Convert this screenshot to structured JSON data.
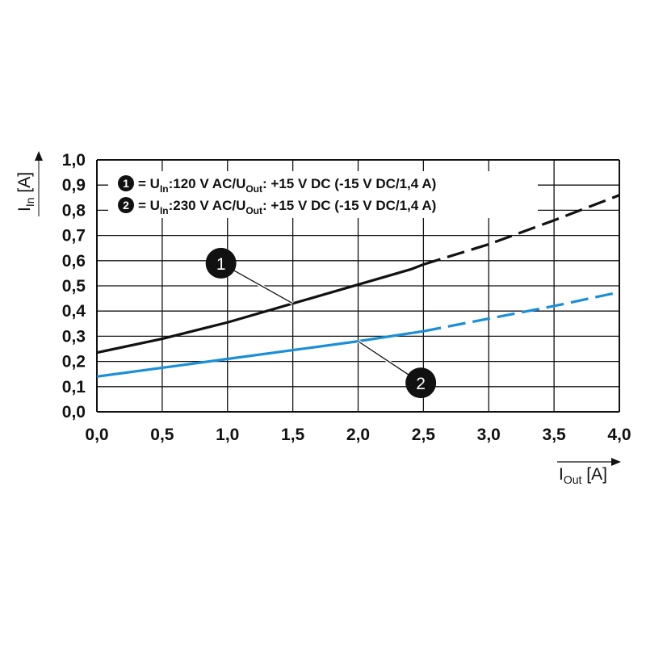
{
  "chart_data": {
    "type": "line",
    "xlim": [
      0,
      4
    ],
    "ylim": [
      0,
      1
    ],
    "grid": true,
    "x_ticks": [
      "0,0",
      "0,5",
      "1,0",
      "1,5",
      "2,0",
      "2,5",
      "3,0",
      "3,5",
      "4,0"
    ],
    "y_ticks": [
      "0,0",
      "0,1",
      "0,2",
      "0,3",
      "0,4",
      "0,5",
      "0,6",
      "0,7",
      "0,8",
      "0,9",
      "1,0"
    ],
    "xlabel": {
      "main": "I",
      "sub": "Out",
      "unit": " [A]"
    },
    "ylabel": {
      "main": "I",
      "sub": "In",
      "unit": " [A]"
    },
    "legend_position": "top",
    "series": [
      {
        "marker": "1",
        "color": "#111111",
        "label_parts": [
          "= U",
          "In",
          ":120 V AC/U",
          "Out",
          ": +15 V DC (-15 V DC/1,4 A)"
        ],
        "solid": {
          "x": [
            0.0,
            0.5,
            1.0,
            1.5,
            2.0,
            2.4,
            2.5
          ],
          "y": [
            0.235,
            0.29,
            0.355,
            0.43,
            0.505,
            0.565,
            0.585
          ]
        },
        "dashed": {
          "x": [
            2.5,
            3.0,
            3.5,
            4.0
          ],
          "y": [
            0.585,
            0.665,
            0.76,
            0.86
          ]
        },
        "callout": {
          "x": 1.5,
          "y": 0.43,
          "marker_x": 0.95,
          "marker_y": 0.59
        }
      },
      {
        "marker": "2",
        "color": "#1a8fd8",
        "label_parts": [
          "= U",
          "In",
          ":230 V AC/U",
          "Out",
          ": +15 V DC (-15 V DC/1,4 A)"
        ],
        "solid": {
          "x": [
            0.0,
            0.5,
            1.0,
            1.5,
            2.0,
            2.5
          ],
          "y": [
            0.14,
            0.175,
            0.21,
            0.245,
            0.28,
            0.32
          ]
        },
        "dashed": {
          "x": [
            2.5,
            3.0,
            3.5,
            4.0
          ],
          "y": [
            0.32,
            0.37,
            0.42,
            0.475
          ]
        },
        "callout": {
          "x": 2.0,
          "y": 0.28,
          "marker_x": 2.48,
          "marker_y": 0.115
        }
      }
    ]
  }
}
